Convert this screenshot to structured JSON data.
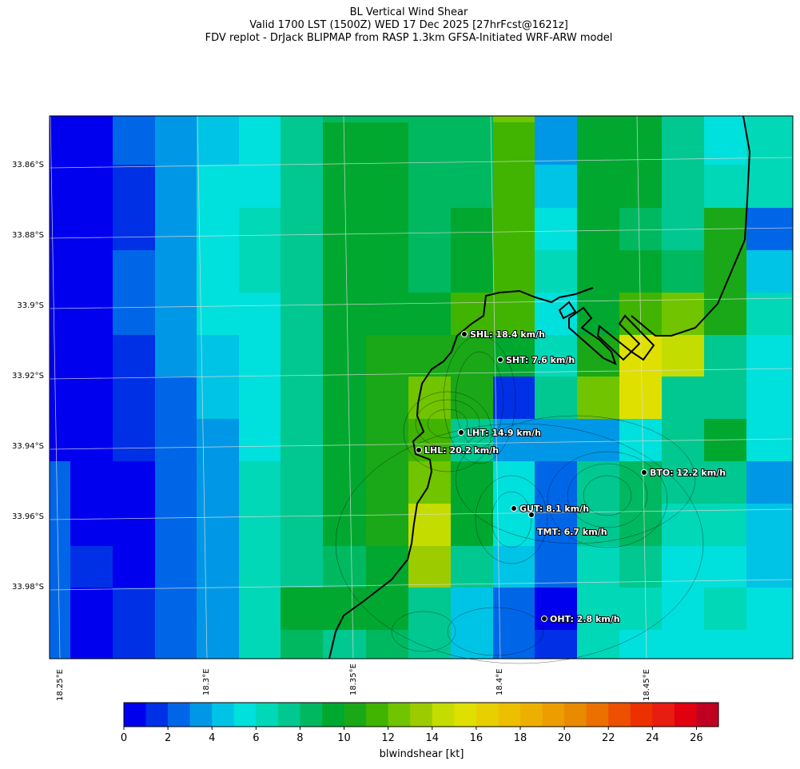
{
  "title": {
    "line1": "BL Vertical Wind Shear",
    "line2": "Valid 1700 LST (1500Z) WED 17 Dec 2025 [27hrFcst@1621z]",
    "line3": "FDV replot - DrJack BLIPMAP from RASP 1.3km GFSA-Initiated WRF-ARW model"
  },
  "lat_labels": [
    "33.86°S",
    "33.88°S",
    "33.9°S",
    "33.92°S",
    "33.94°S",
    "33.96°S",
    "33.98°S"
  ],
  "lon_labels": [
    "18.25°E",
    "18.3°E",
    "18.35°E",
    "18.4°E",
    "18.45°E"
  ],
  "stations": [
    {
      "code": "SHL",
      "label": "SHL: 18.4 km/h"
    },
    {
      "code": "SHT",
      "label": "SHT: 7.6 km/h"
    },
    {
      "code": "LHT",
      "label": "LHT: 14.9 km/h"
    },
    {
      "code": "LHL",
      "label": "LHL: 20.2 km/h"
    },
    {
      "code": "BTO",
      "label": "BTO: 12.2 km/h"
    },
    {
      "code": "GUT",
      "label": "GUT: 8.1 km/h"
    },
    {
      "code": "TMT",
      "label": "TMT: 6.7 km/h"
    },
    {
      "code": "OHT",
      "label": "OHT: 2.8 km/h"
    }
  ],
  "colorbar": {
    "label": "blwindshear [kt]",
    "ticks": [
      "0",
      "2",
      "4",
      "6",
      "8",
      "10",
      "12",
      "14",
      "16",
      "18",
      "20",
      "22",
      "24",
      "26"
    ],
    "min": 0,
    "max": 27,
    "colors": [
      "#0000ee",
      "#0030e6",
      "#0066e8",
      "#0098e6",
      "#00c4e6",
      "#00e0dc",
      "#00d8b8",
      "#00c890",
      "#00b860",
      "#00a830",
      "#1aa818",
      "#40b400",
      "#70c400",
      "#9ccc00",
      "#c4dc00",
      "#e0e000",
      "#e8d000",
      "#ecc000",
      "#eeb000",
      "#ec9e00",
      "#ea8a00",
      "#ec7000",
      "#ec5000",
      "#ec3000",
      "#e81c10",
      "#e00010",
      "#c00020"
    ]
  },
  "map_data": {
    "type": "heatmap",
    "units": "kt",
    "grid": [
      [
        0,
        0,
        2,
        3,
        4,
        5,
        7,
        8,
        8,
        8,
        8,
        12,
        3,
        9,
        9,
        7,
        5,
        6
      ],
      [
        0,
        0,
        2,
        3,
        4,
        5,
        7,
        9,
        9,
        8,
        8,
        11,
        3,
        9,
        9,
        7,
        5,
        6
      ],
      [
        0,
        0,
        1,
        3,
        5,
        5,
        7,
        9,
        9,
        8,
        8,
        11,
        4,
        9,
        9,
        7,
        6,
        6
      ],
      [
        0,
        0,
        1,
        3,
        5,
        6,
        7,
        9,
        9,
        8,
        9,
        11,
        5,
        9,
        8,
        7,
        10,
        2
      ],
      [
        0,
        0,
        2,
        3,
        5,
        6,
        7,
        9,
        9,
        8,
        9,
        11,
        6,
        9,
        9,
        8,
        10,
        4
      ],
      [
        0,
        0,
        2,
        3,
        5,
        5,
        7,
        9,
        9,
        9,
        11,
        11,
        5,
        9,
        11,
        12,
        10,
        6
      ],
      [
        0,
        0,
        1,
        3,
        4,
        5,
        7,
        9,
        10,
        10,
        10,
        9,
        6,
        10,
        15,
        14,
        7,
        5
      ],
      [
        0,
        0,
        1,
        2,
        4,
        5,
        7,
        9,
        10,
        12,
        10,
        1,
        7,
        12,
        15,
        7,
        7,
        5
      ],
      [
        0,
        0,
        1,
        2,
        3,
        5,
        7,
        9,
        10,
        11,
        7,
        3,
        3,
        3,
        5,
        7,
        9,
        5
      ],
      [
        2,
        0,
        0,
        2,
        3,
        6,
        7,
        9,
        10,
        12,
        9,
        5,
        2,
        7,
        8,
        7,
        7,
        3
      ],
      [
        2,
        0,
        0,
        2,
        3,
        6,
        7,
        9,
        10,
        14,
        9,
        5,
        2,
        7,
        8,
        6,
        6,
        4
      ],
      [
        2,
        1,
        0,
        2,
        3,
        6,
        7,
        8,
        9,
        13,
        7,
        4,
        2,
        6,
        7,
        5,
        5,
        4
      ],
      [
        2,
        0,
        1,
        2,
        3,
        6,
        9,
        9,
        9,
        7,
        4,
        2,
        0,
        6,
        6,
        5,
        6,
        5
      ],
      [
        2,
        0,
        1,
        2,
        3,
        6,
        8,
        7,
        8,
        7,
        4,
        2,
        1,
        6,
        5,
        5,
        5,
        5
      ]
    ]
  }
}
